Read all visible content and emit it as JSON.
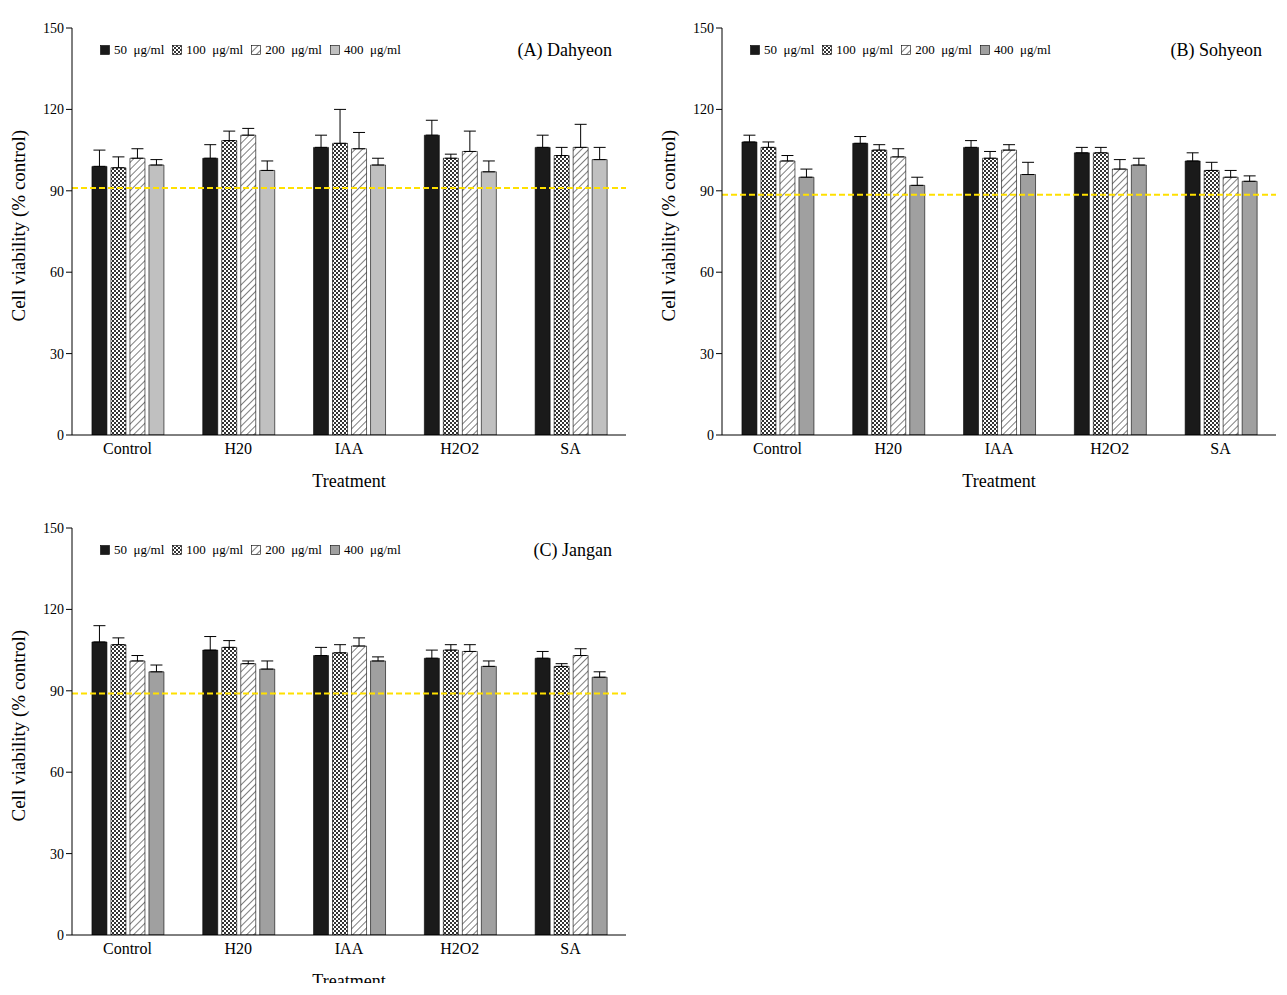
{
  "chart_data": [
    {
      "type": "bar",
      "title": "(A) Dahyeon",
      "xlabel": "Treatment",
      "ylabel": "Cell viability (% control)",
      "categories": [
        "Control",
        "H20",
        "IAA",
        "H2O2",
        "SA"
      ],
      "ylim": [
        0,
        150
      ],
      "yticks": [
        0,
        30,
        60,
        90,
        120,
        150
      ],
      "grid": false,
      "legend": "upper left",
      "reference_line": 91,
      "series": [
        {
          "name": "50  μg/ml",
          "color": "#1a1a1a",
          "values": [
            99,
            102,
            106,
            110.5,
            106
          ],
          "errors": [
            6,
            5,
            4.5,
            5.5,
            4.5
          ]
        },
        {
          "name": "100  μg/ml",
          "color": "#333333",
          "values": [
            98.5,
            108.5,
            107.5,
            102,
            103
          ],
          "errors": [
            4,
            3.5,
            12.5,
            1.5,
            3
          ]
        },
        {
          "name": "200  μg/ml",
          "color": "#7f7f7f",
          "values": [
            102,
            110.5,
            105.5,
            104.5,
            106
          ],
          "errors": [
            3.5,
            2.5,
            6,
            7.5,
            8.5
          ]
        },
        {
          "name": "400  μg/ml",
          "color": "#c0c0c0",
          "values": [
            99.5,
            97.5,
            99.5,
            97,
            101.5
          ],
          "errors": [
            2,
            3.5,
            2.5,
            4,
            4.5
          ]
        }
      ]
    },
    {
      "type": "bar",
      "title": "(B) Sohyeon",
      "xlabel": "Treatment",
      "ylabel": "Cell viability (% control)",
      "categories": [
        "Control",
        "H20",
        "IAA",
        "H2O2",
        "SA"
      ],
      "ylim": [
        0,
        150
      ],
      "yticks": [
        0,
        30,
        60,
        90,
        120,
        150
      ],
      "grid": false,
      "legend": "upper left",
      "reference_line": 88.5,
      "series": [
        {
          "name": "50  μg/ml",
          "color": "#1a1a1a",
          "values": [
            108,
            107.5,
            106,
            104,
            101
          ],
          "errors": [
            2.5,
            2.5,
            2.5,
            2,
            3
          ]
        },
        {
          "name": "100  μg/ml",
          "color": "#333333",
          "values": [
            106,
            105,
            102,
            104,
            97.5
          ],
          "errors": [
            2,
            2,
            2.5,
            2,
            3
          ]
        },
        {
          "name": "200  μg/ml",
          "color": "#7f7f7f",
          "values": [
            101,
            102.5,
            105,
            98,
            95
          ],
          "errors": [
            2,
            3,
            2,
            3.5,
            2.5
          ]
        },
        {
          "name": "400  μg/ml",
          "color": "#a0a0a0",
          "values": [
            95,
            92,
            96,
            99.5,
            93.5
          ],
          "errors": [
            3,
            3,
            4.5,
            2.5,
            2
          ]
        }
      ]
    },
    {
      "type": "bar",
      "title": "(C) Jangan",
      "xlabel": "Treatment",
      "ylabel": "Cell viability (% control)",
      "categories": [
        "Control",
        "H20",
        "IAA",
        "H2O2",
        "SA"
      ],
      "ylim": [
        0,
        150
      ],
      "yticks": [
        0,
        30,
        60,
        90,
        120,
        150
      ],
      "grid": false,
      "legend": "upper left",
      "reference_line": 89,
      "series": [
        {
          "name": "50  μg/ml",
          "color": "#1a1a1a",
          "values": [
            108,
            105,
            103,
            102,
            102
          ],
          "errors": [
            6,
            5,
            3,
            3,
            2.5
          ]
        },
        {
          "name": "100  μg/ml",
          "color": "#333333",
          "values": [
            107,
            106,
            104,
            105,
            99
          ],
          "errors": [
            2.5,
            2.5,
            3,
            2,
            1
          ]
        },
        {
          "name": "200  μg/ml",
          "color": "#7f7f7f",
          "values": [
            101,
            100,
            106.5,
            104.5,
            103
          ],
          "errors": [
            2,
            1,
            3,
            2.5,
            2.5
          ]
        },
        {
          "name": "400  μg/ml",
          "color": "#a0a0a0",
          "values": [
            97,
            98,
            101,
            99,
            95
          ],
          "errors": [
            2.5,
            3,
            1.5,
            2,
            2
          ]
        }
      ]
    }
  ]
}
